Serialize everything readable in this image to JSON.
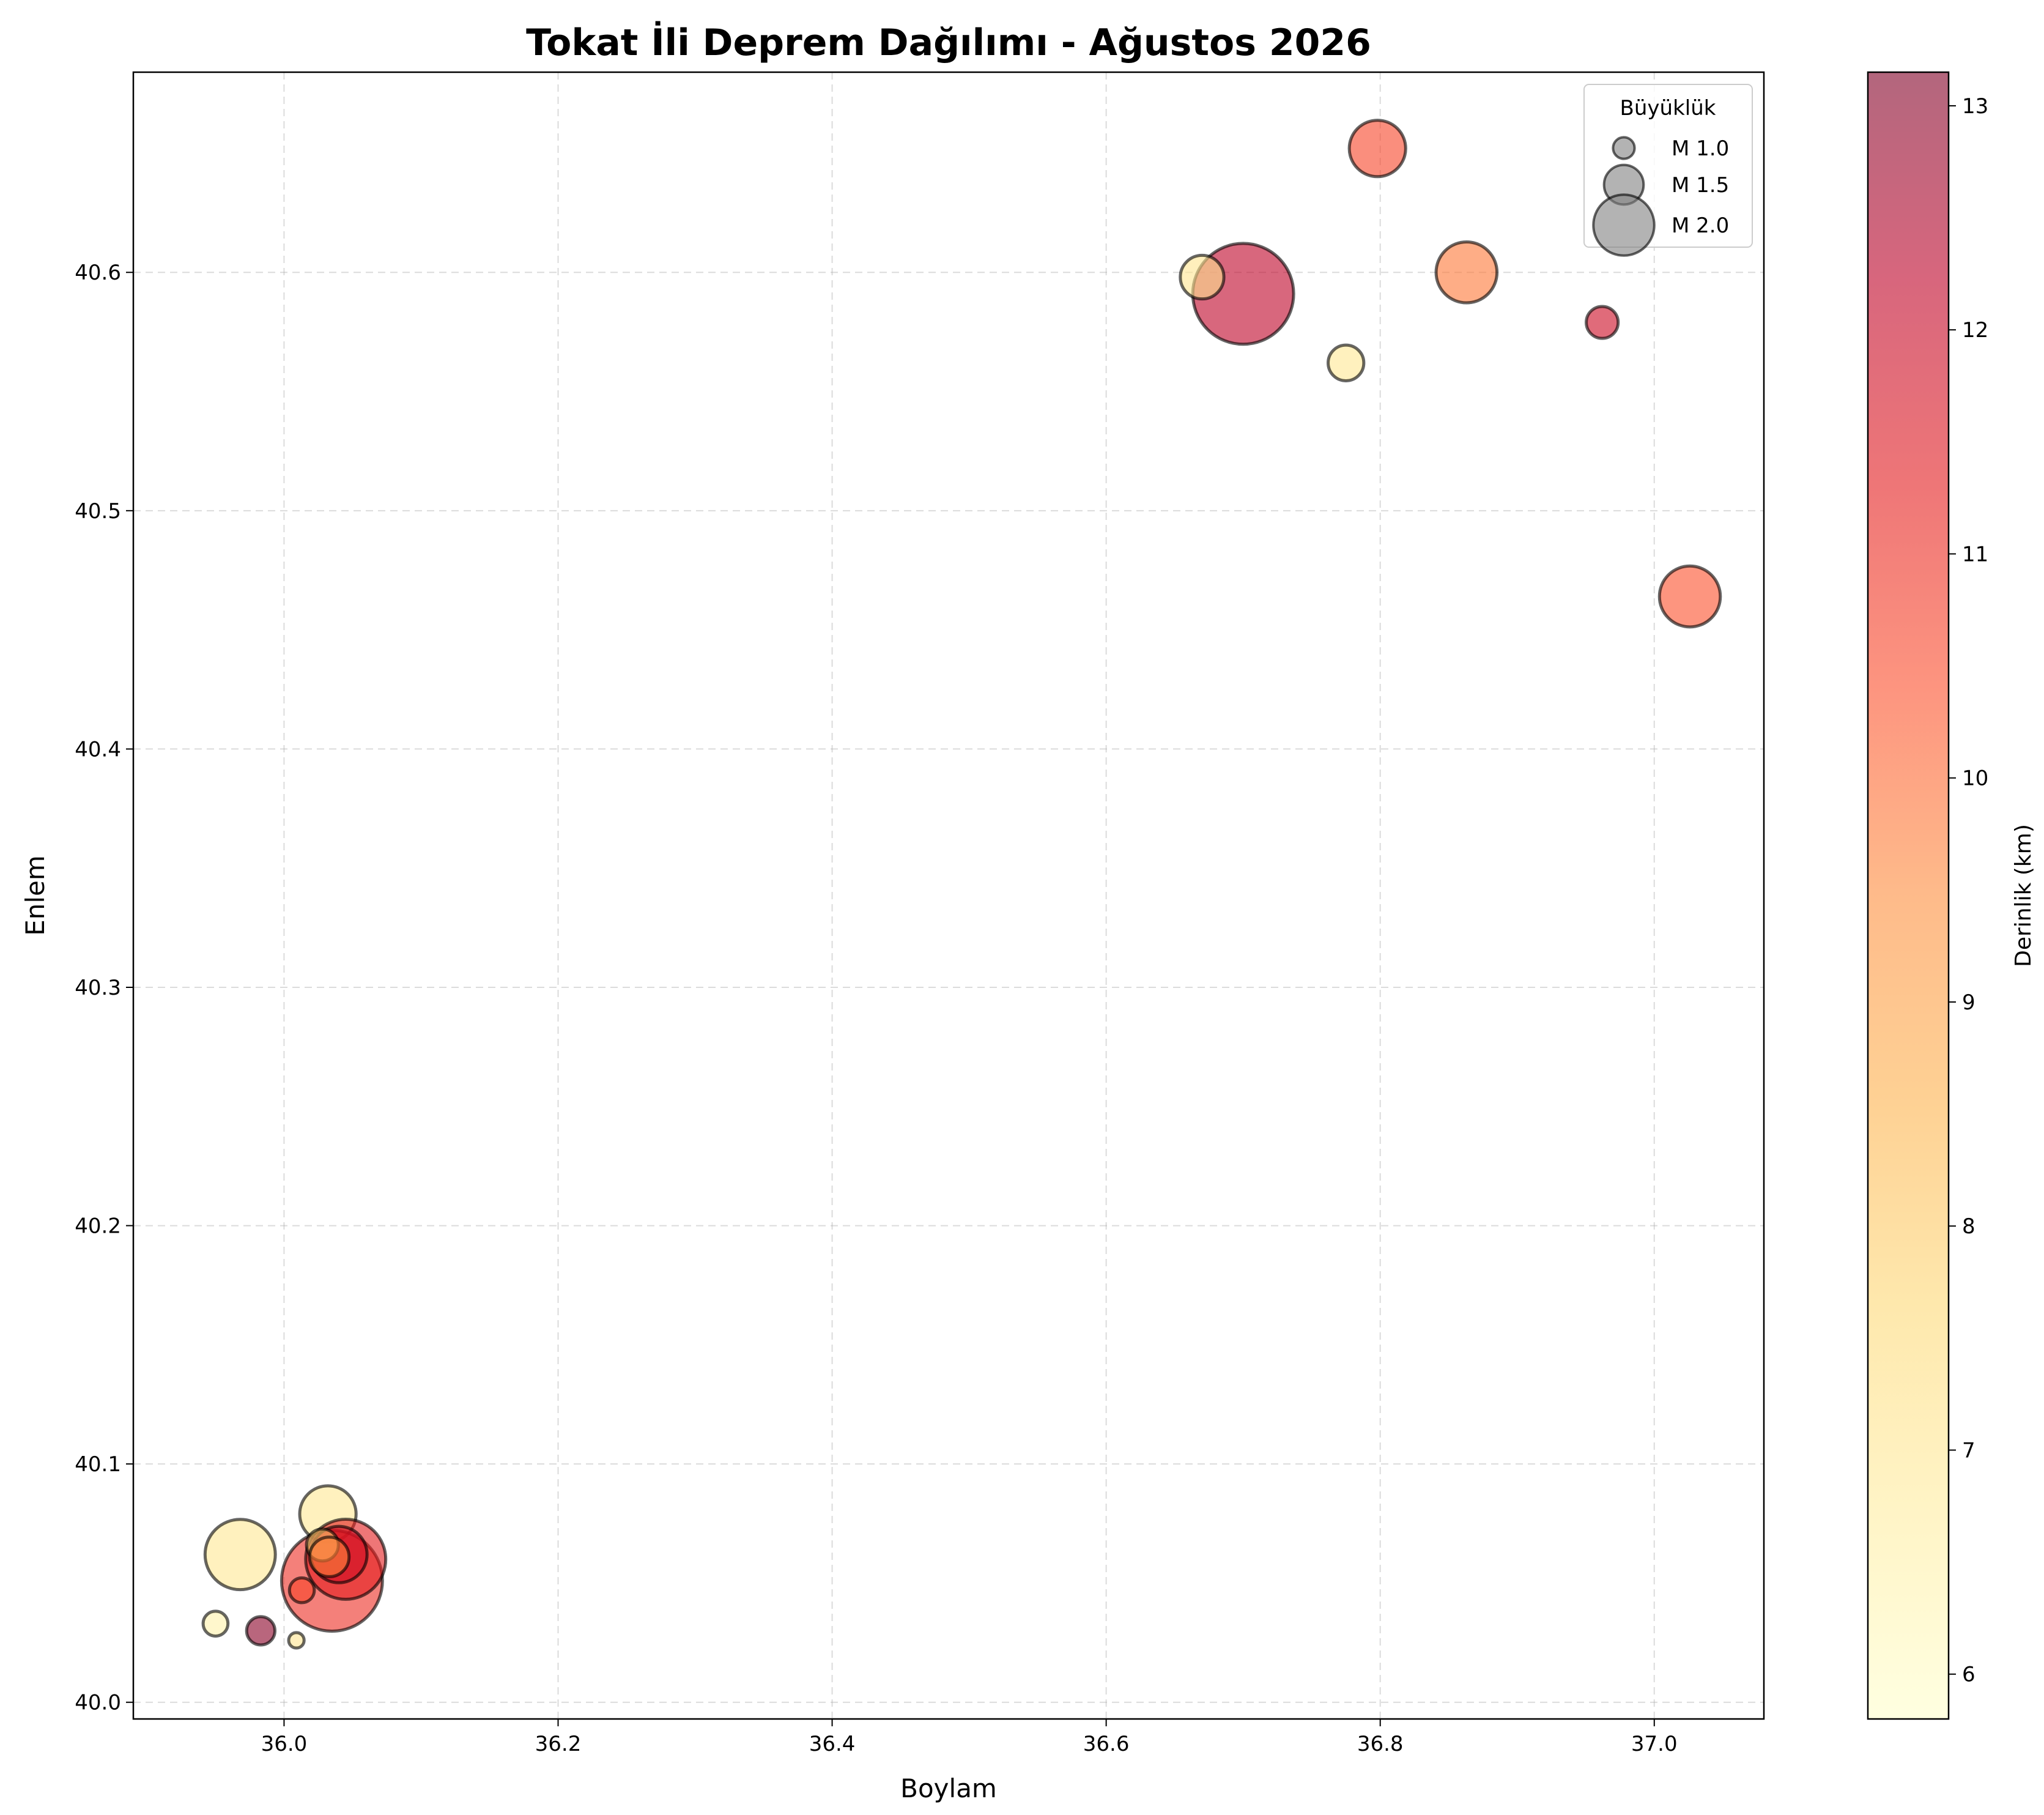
{
  "chart_data": {
    "type": "scatter",
    "title": "Tokat İli Deprem Dağılımı - Ağustos 2026",
    "xlabel": "Boylam",
    "ylabel": "Enlem",
    "xlim": [
      35.89,
      37.08
    ],
    "ylim": [
      39.993,
      40.684
    ],
    "xticks": [
      "36.0",
      "36.2",
      "36.4",
      "36.6",
      "36.8",
      "37.0"
    ],
    "yticks": [
      "40.0",
      "40.1",
      "40.2",
      "40.3",
      "40.4",
      "40.5",
      "40.6"
    ],
    "grid": true,
    "colorbar": {
      "label": "Derinlik (km)",
      "range": [
        5.8,
        13.15
      ],
      "ticks": [
        "6",
        "7",
        "8",
        "9",
        "10",
        "11",
        "12",
        "13"
      ],
      "colormap": "YlOrRd",
      "alpha": 0.6
    },
    "legend": {
      "title": "Büyüklük",
      "position": "top-right",
      "entries": [
        {
          "label": "M 1.0",
          "magnitude": 1.0
        },
        {
          "label": "M 1.5",
          "magnitude": 1.5
        },
        {
          "label": "M 2.0",
          "magnitude": 2.0
        }
      ]
    },
    "points": [
      {
        "lon": 36.7,
        "lat": 40.591,
        "mag": 2.8,
        "depth": 12.2
      },
      {
        "lon": 36.798,
        "lat": 40.652,
        "mag": 1.9,
        "depth": 10.6
      },
      {
        "lon": 36.67,
        "lat": 40.598,
        "mag": 1.6,
        "depth": 7.1
      },
      {
        "lon": 36.863,
        "lat": 40.6,
        "mag": 2.0,
        "depth": 9.8
      },
      {
        "lon": 36.962,
        "lat": 40.579,
        "mag": 1.3,
        "depth": 11.9
      },
      {
        "lon": 36.775,
        "lat": 40.562,
        "mag": 1.4,
        "depth": 7.0
      },
      {
        "lon": 37.026,
        "lat": 40.464,
        "mag": 2.0,
        "depth": 10.4
      },
      {
        "lon": 35.968,
        "lat": 40.062,
        "mag": 2.2,
        "depth": 7.0
      },
      {
        "lon": 36.032,
        "lat": 40.079,
        "mag": 1.9,
        "depth": 7.0
      },
      {
        "lon": 36.035,
        "lat": 40.051,
        "mag": 2.8,
        "depth": 11.0
      },
      {
        "lon": 36.045,
        "lat": 40.06,
        "mag": 2.4,
        "depth": 11.3
      },
      {
        "lon": 36.04,
        "lat": 40.062,
        "mag": 1.9,
        "depth": 11.8
      },
      {
        "lon": 36.028,
        "lat": 40.066,
        "mag": 1.3,
        "depth": 7.8
      },
      {
        "lon": 36.033,
        "lat": 40.061,
        "mag": 1.5,
        "depth": 9.6
      },
      {
        "lon": 36.013,
        "lat": 40.047,
        "mag": 1.1,
        "depth": 10.6
      },
      {
        "lon": 35.95,
        "lat": 40.033,
        "mag": 1.1,
        "depth": 6.5
      },
      {
        "lon": 35.983,
        "lat": 40.03,
        "mag": 1.2,
        "depth": 13.0
      },
      {
        "lon": 36.009,
        "lat": 40.026,
        "mag": 0.8,
        "depth": 7.1
      }
    ]
  }
}
